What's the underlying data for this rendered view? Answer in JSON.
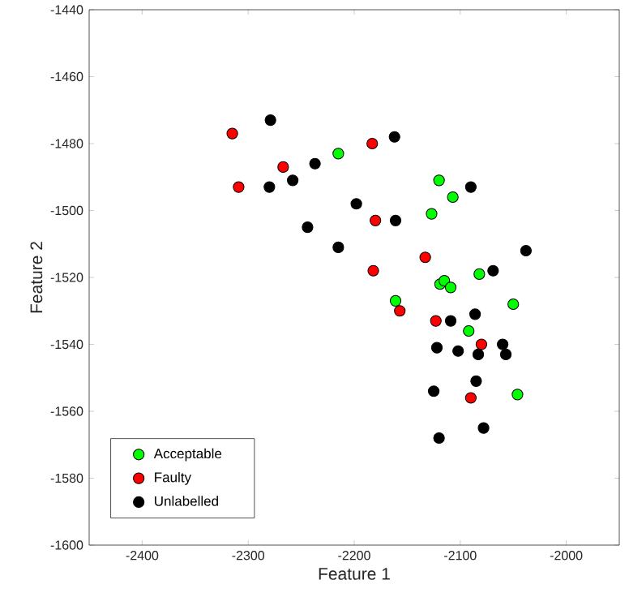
{
  "chart_data": {
    "type": "scatter",
    "xlabel": "Feature 1",
    "ylabel": "Feature 2",
    "xlim": [
      -2450,
      -1950
    ],
    "ylim": [
      -1600,
      -1440
    ],
    "xticks": [
      -2400,
      -2300,
      -2200,
      -2100,
      -2000
    ],
    "yticks": [
      -1600,
      -1580,
      -1560,
      -1540,
      -1520,
      -1500,
      -1480,
      -1460,
      -1440
    ],
    "grid": false,
    "legend": "bottom left",
    "marker": "circle",
    "series": [
      {
        "name": "Acceptable",
        "color": "#00ff00",
        "x": [
          -2215,
          -2120,
          -2107,
          -2127,
          -2082,
          -2119,
          -2115,
          -2109,
          -2161,
          -2050,
          -2092,
          -2046
        ],
        "values": [
          -1483,
          -1491,
          -1496,
          -1501,
          -1519,
          -1522,
          -1521,
          -1523,
          -1527,
          -1528,
          -1536,
          -1555
        ]
      },
      {
        "name": "Faulty",
        "color": "#ff0000",
        "x": [
          -2315,
          -2267,
          -2309,
          -2183,
          -2180,
          -2182,
          -2157,
          -2133,
          -2123,
          -2080,
          -2090
        ],
        "values": [
          -1477,
          -1487,
          -1493,
          -1480,
          -1503,
          -1518,
          -1530,
          -1514,
          -1533,
          -1540,
          -1556
        ]
      },
      {
        "name": "Unlabelled",
        "color": "#000000",
        "x": [
          -2279,
          -2162,
          -2237,
          -2258,
          -2280,
          -2198,
          -2161,
          -2244,
          -2215,
          -2090,
          -2038,
          -2069,
          -2109,
          -2086,
          -2122,
          -2102,
          -2083,
          -2060,
          -2057,
          -2085,
          -2125,
          -2078,
          -2120
        ],
        "values": [
          -1473,
          -1478,
          -1486,
          -1491,
          -1493,
          -1498,
          -1503,
          -1505,
          -1511,
          -1493,
          -1512,
          -1518,
          -1533,
          -1531,
          -1541,
          -1542,
          -1543,
          -1540,
          -1543,
          -1551,
          -1554,
          -1565,
          -1568
        ]
      }
    ]
  }
}
